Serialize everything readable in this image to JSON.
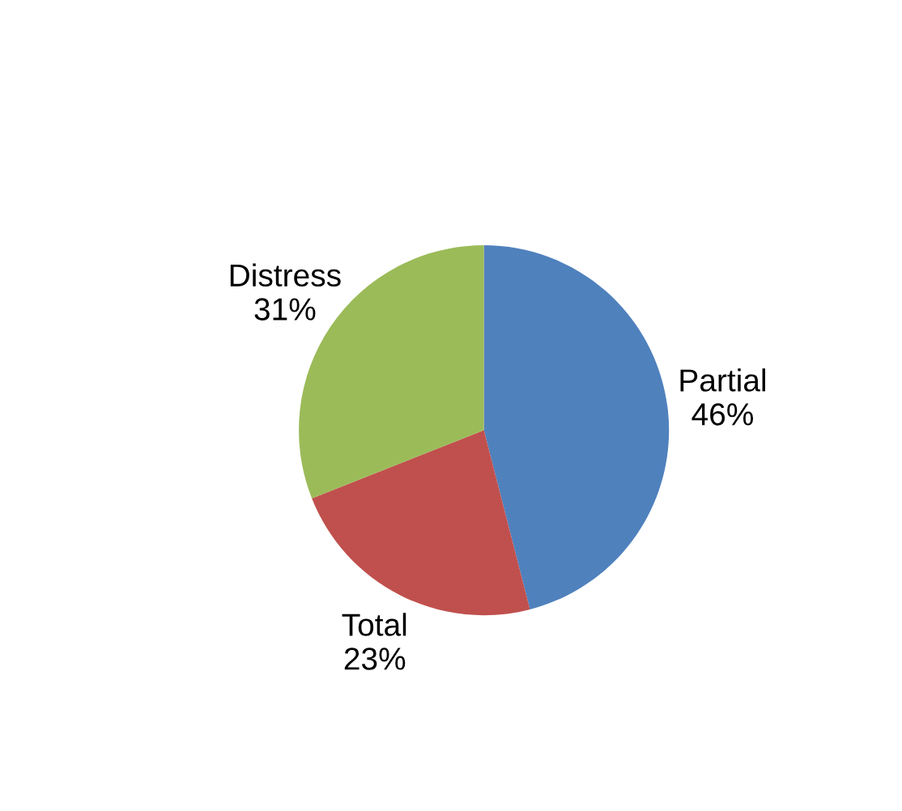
{
  "chart_data": {
    "type": "pie",
    "categories": [
      "Partial",
      "Total",
      "Distress"
    ],
    "values": [
      46,
      23,
      31
    ],
    "value_labels": [
      "46%",
      "23%",
      "31%"
    ],
    "colors": [
      "#4f81bd",
      "#c0504d",
      "#9bbb59"
    ],
    "legend": false
  }
}
